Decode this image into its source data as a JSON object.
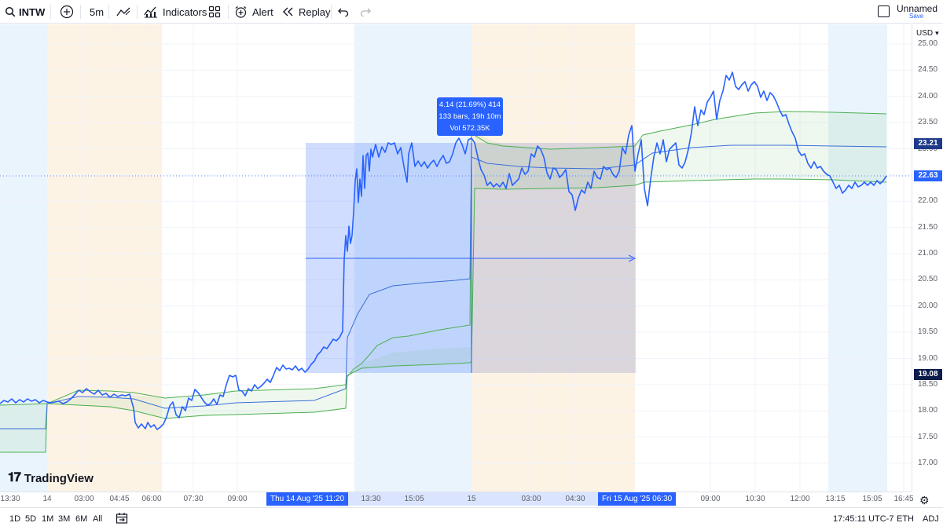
{
  "toolbar": {
    "symbol": "INTW",
    "interval": "5m",
    "indicators_label": "Indicators",
    "alert_label": "Alert",
    "replay_label": "Replay",
    "layout_name": "Unnamed",
    "save_label": "Save"
  },
  "price_axis": {
    "currency": "USD",
    "ticks": [
      "25.00",
      "24.50",
      "24.00",
      "23.50",
      "23.00",
      "22.50",
      "22.00",
      "21.50",
      "21.00",
      "20.50",
      "20.00",
      "19.50",
      "19.00",
      "18.50",
      "18.00",
      "17.50",
      "17.00"
    ],
    "badges": {
      "upper": "23.21",
      "last": "22.63",
      "lower": "19.08"
    }
  },
  "measure_tooltip": {
    "line1": "4.14 (21.69%) 414",
    "line2": "133 bars, 19h 10m",
    "line3": "Vol 572.35K"
  },
  "time_axis": {
    "ticks": [
      "13:30",
      "14",
      "03:00",
      "04:45",
      "06:00",
      "07:30",
      "09:00",
      "13:30",
      "15:05",
      "15",
      "03:00",
      "04:30",
      "09:00",
      "10:30",
      "12:00",
      "13:15",
      "15:05",
      "16:45"
    ],
    "start_badge": "Thu 14 Aug '25   11:20",
    "end_badge": "Fri 15 Aug '25   06:30"
  },
  "bottom_bar": {
    "ranges": [
      "1D",
      "5D",
      "1M",
      "3M",
      "6M",
      "All"
    ],
    "clock": "17:45:11 UTC-7",
    "session": "ETH",
    "adjust": "ADJ"
  },
  "watermark": "TradingView",
  "colors": {
    "price_line": "#2962ff",
    "band_line": "#4caf50",
    "vwap_line": "#3a6fd8",
    "measure_fill": "#2962ff",
    "accent": "#2962ff"
  },
  "chart_data": {
    "type": "line",
    "title": "",
    "xlabel": "",
    "ylabel": "",
    "ylim": [
      17.0,
      25.0
    ],
    "x": [
      "13:30",
      "14",
      "03:00",
      "04:45",
      "06:00",
      "07:30",
      "09:00",
      "11:20",
      "13:30",
      "15:05",
      "15",
      "03:00",
      "04:30",
      "06:30",
      "09:00",
      "10:30",
      "12:00",
      "13:15",
      "15:05"
    ],
    "series": [
      {
        "values": [
          18.55,
          18.55,
          18.7,
          18.55,
          18.1,
          18.4,
          18.85,
          19.5,
          23.0,
          22.9,
          23.35,
          22.5,
          22.1,
          23.2,
          24.0,
          24.3,
          23.0,
          22.4,
          22.63
        ]
      }
    ],
    "grid": true
  }
}
